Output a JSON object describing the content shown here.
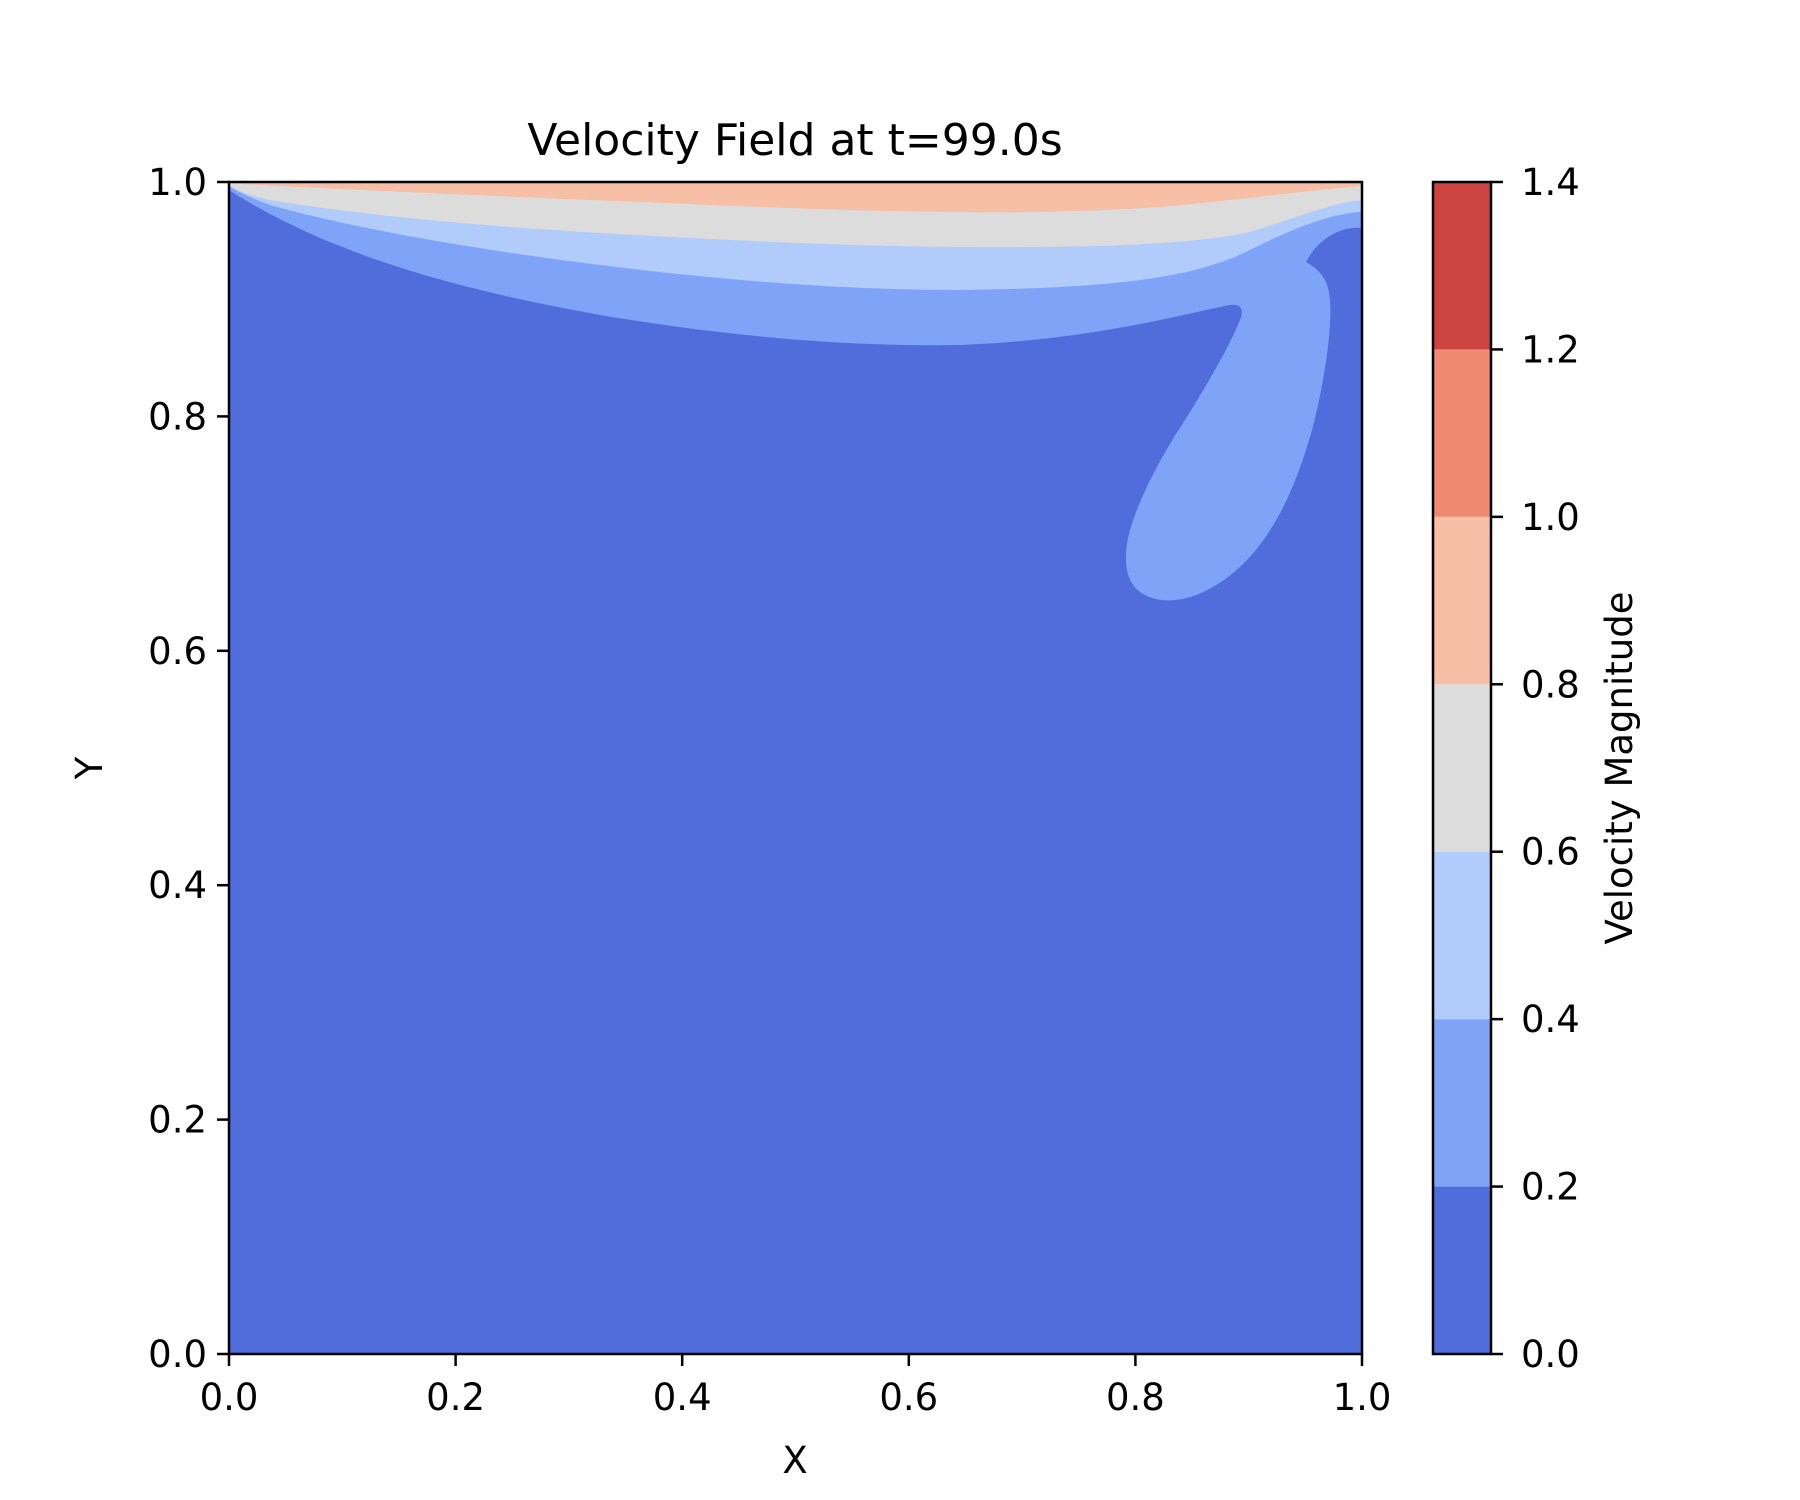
{
  "chart_data": {
    "type": "contour",
    "title": "Velocity Field at t=99.0s",
    "xlabel": "X",
    "ylabel": "Y",
    "xlim": [
      0.0,
      1.0
    ],
    "ylim": [
      0.0,
      1.0
    ],
    "x_ticks": [
      "0.0",
      "0.2",
      "0.4",
      "0.6",
      "0.8",
      "1.0"
    ],
    "y_ticks": [
      "0.0",
      "0.2",
      "0.4",
      "0.6",
      "0.8",
      "1.0"
    ],
    "grid": false,
    "colorbar": {
      "label": "Velocity Magnitude",
      "ticks": [
        "0.0",
        "0.2",
        "0.4",
        "0.6",
        "0.8",
        "1.0",
        "1.2",
        "1.4"
      ],
      "levels": [
        0.0,
        0.2,
        0.4,
        0.6,
        0.8,
        1.0,
        1.2,
        1.4
      ],
      "colors": [
        "#516DDB",
        "#7FA3F7",
        "#B1CBFA",
        "#DCDCDC",
        "#F6BFA6",
        "#ED8A6F",
        "#CC4340"
      ]
    },
    "regions": [
      {
        "level_range": [
          0.0,
          0.2
        ],
        "desc": "bulk of cavity"
      },
      {
        "level_range": [
          0.2,
          0.4
        ],
        "desc": "band below lid and plume near right wall"
      },
      {
        "level_range": [
          0.4,
          0.6
        ],
        "desc": "band below lid"
      },
      {
        "level_range": [
          0.6,
          0.8
        ],
        "desc": "band below lid"
      },
      {
        "level_range": [
          0.8,
          1.0
        ],
        "desc": "thin layer at lid"
      }
    ]
  }
}
